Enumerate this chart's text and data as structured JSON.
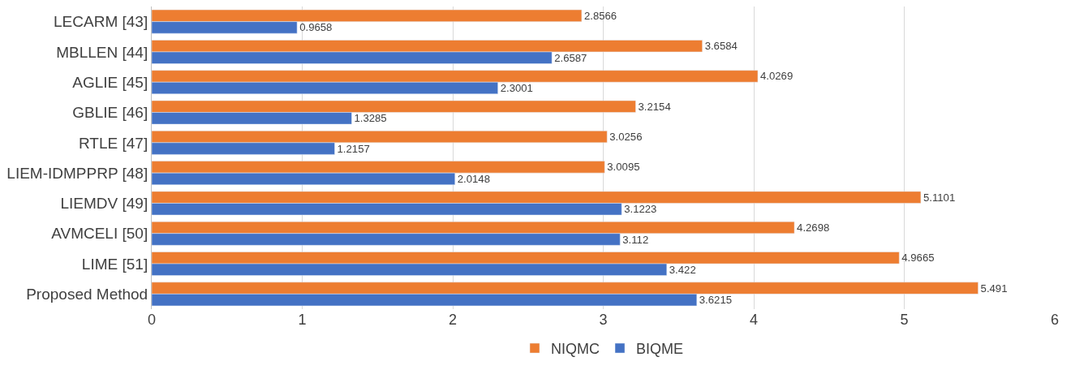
{
  "chart_data": {
    "type": "bar",
    "orientation": "horizontal",
    "categories": [
      "LECARM [43]",
      "MBLLEN [44]",
      "AGLIE [45]",
      "GBLIE [46]",
      "RTLE [47]",
      "LIEM-IDMPPRP [48]",
      "LIEMDV [49]",
      "AVMCELI [50]",
      "LIME [51]",
      "Proposed Method"
    ],
    "series": [
      {
        "name": "NIQMC",
        "color": "#ed7d31",
        "values": [
          2.8566,
          3.6584,
          4.0269,
          3.2154,
          3.0256,
          3.0095,
          5.1101,
          4.2698,
          4.9665,
          5.491
        ]
      },
      {
        "name": "BIQME",
        "color": "#4472c4",
        "values": [
          0.9658,
          2.6587,
          2.3001,
          1.3285,
          1.2157,
          2.0148,
          3.1223,
          3.112,
          3.422,
          3.6215
        ]
      }
    ],
    "xlim": [
      0,
      6
    ],
    "xticks": [
      0,
      1,
      2,
      3,
      4,
      5,
      6
    ],
    "grid": "x",
    "legend": "bottom",
    "data_labels": true
  }
}
